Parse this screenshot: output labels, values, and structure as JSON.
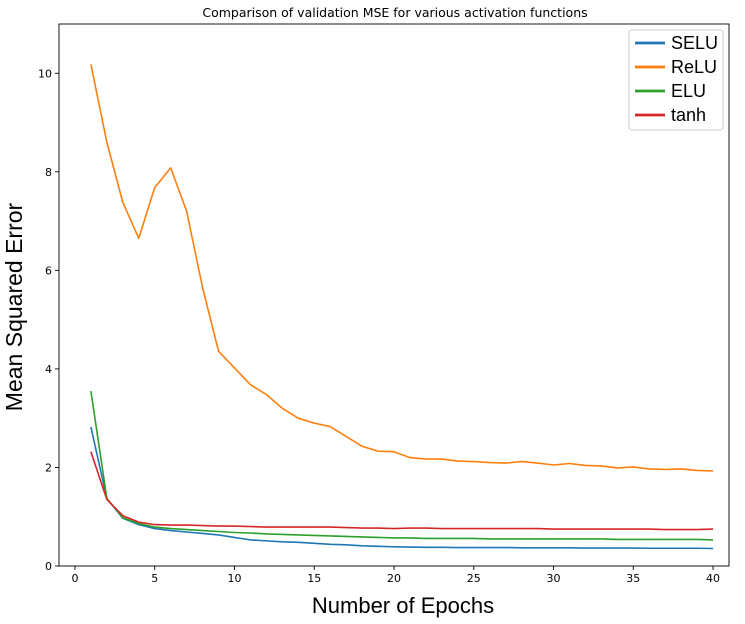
{
  "chart_data": {
    "type": "line",
    "title": "Comparison of validation MSE for various activation functions",
    "xlabel": "Number of Epochs",
    "ylabel": "Mean Squared Error",
    "xlim": [
      -1,
      41
    ],
    "ylim": [
      0,
      11
    ],
    "xticks": [
      0,
      5,
      10,
      15,
      20,
      25,
      30,
      35,
      40
    ],
    "yticks": [
      0,
      2,
      4,
      6,
      8,
      10
    ],
    "grid": false,
    "legend_position": "top-right",
    "x": [
      1,
      2,
      3,
      4,
      5,
      6,
      7,
      8,
      9,
      10,
      11,
      12,
      13,
      14,
      15,
      16,
      17,
      18,
      19,
      20,
      21,
      22,
      23,
      24,
      25,
      26,
      27,
      28,
      29,
      30,
      31,
      32,
      33,
      34,
      35,
      36,
      37,
      38,
      39,
      40
    ],
    "series": [
      {
        "name": "SELU",
        "color": "#1f77b4",
        "values": [
          2.82,
          1.37,
          0.97,
          0.84,
          0.76,
          0.72,
          0.69,
          0.66,
          0.63,
          0.58,
          0.53,
          0.51,
          0.49,
          0.48,
          0.46,
          0.44,
          0.43,
          0.41,
          0.4,
          0.39,
          0.385,
          0.38,
          0.38,
          0.375,
          0.375,
          0.375,
          0.375,
          0.37,
          0.37,
          0.37,
          0.37,
          0.365,
          0.365,
          0.365,
          0.365,
          0.36,
          0.36,
          0.36,
          0.36,
          0.355
        ]
      },
      {
        "name": "ReLU",
        "color": "#ff7f0e",
        "values": [
          10.18,
          8.6,
          7.38,
          6.65,
          7.68,
          8.08,
          7.2,
          5.65,
          4.36,
          4.02,
          3.68,
          3.48,
          3.2,
          3.0,
          2.9,
          2.83,
          2.63,
          2.43,
          2.33,
          2.32,
          2.2,
          2.17,
          2.17,
          2.13,
          2.12,
          2.1,
          2.09,
          2.12,
          2.09,
          2.05,
          2.08,
          2.04,
          2.03,
          1.99,
          2.01,
          1.97,
          1.96,
          1.97,
          1.94,
          1.93
        ]
      },
      {
        "name": "ELU",
        "color": "#2ca02c",
        "values": [
          3.55,
          1.37,
          0.98,
          0.86,
          0.79,
          0.76,
          0.74,
          0.72,
          0.7,
          0.68,
          0.67,
          0.65,
          0.64,
          0.63,
          0.62,
          0.61,
          0.6,
          0.59,
          0.58,
          0.57,
          0.57,
          0.56,
          0.56,
          0.56,
          0.56,
          0.55,
          0.55,
          0.55,
          0.55,
          0.55,
          0.55,
          0.55,
          0.55,
          0.54,
          0.54,
          0.54,
          0.54,
          0.54,
          0.54,
          0.53
        ]
      },
      {
        "name": "tanh",
        "color": "#d62728",
        "values": [
          2.32,
          1.35,
          1.02,
          0.89,
          0.84,
          0.83,
          0.83,
          0.82,
          0.81,
          0.81,
          0.8,
          0.79,
          0.79,
          0.79,
          0.79,
          0.79,
          0.78,
          0.77,
          0.77,
          0.76,
          0.77,
          0.77,
          0.76,
          0.76,
          0.76,
          0.76,
          0.76,
          0.76,
          0.76,
          0.75,
          0.75,
          0.75,
          0.75,
          0.75,
          0.75,
          0.75,
          0.74,
          0.74,
          0.74,
          0.75
        ]
      }
    ]
  }
}
